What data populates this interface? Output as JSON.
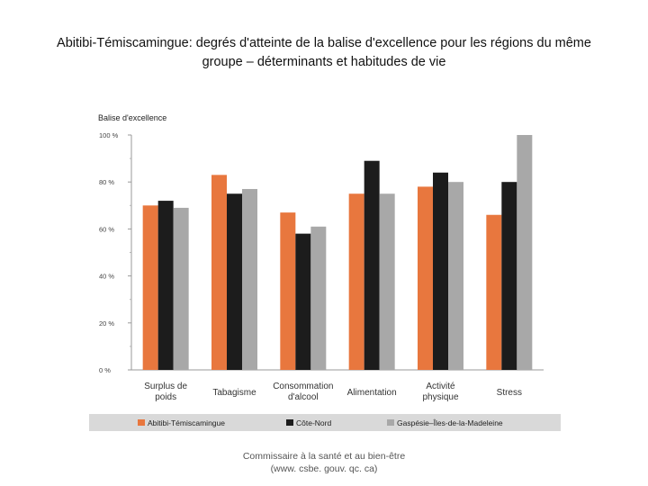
{
  "slide": {
    "title_line1": "Abitibi-Témiscamingue: degrés d'atteinte de la balise d'excellence pour les régions du même",
    "title_line2": "groupe – déterminants et habitudes de vie",
    "footer_line1": "Commissaire à la santé et au bien-être",
    "footer_line2": "(www. csbe. gouv. qc. ca)"
  },
  "chart_data": {
    "type": "bar",
    "ylabel": "Balise d'excellence",
    "yticks": [
      "0 %",
      "20 %",
      "40 %",
      "60 %",
      "80 %",
      "100 %"
    ],
    "ylim": [
      0,
      100
    ],
    "categories": [
      [
        "Surplus de",
        "poids"
      ],
      [
        "Tabagisme"
      ],
      [
        "Consommation",
        "d'alcool"
      ],
      [
        "Alimentation"
      ],
      [
        "Activité",
        "physique"
      ],
      [
        "Stress"
      ]
    ],
    "series": [
      {
        "name": "Abitibi-Témiscamingue",
        "color": "#e8773e",
        "values": [
          70,
          83,
          67,
          75,
          78,
          66
        ]
      },
      {
        "name": "Côte-Nord",
        "color": "#1c1c1c",
        "values": [
          72,
          75,
          58,
          89,
          84,
          80
        ]
      },
      {
        "name": "Gaspésie–Îles-de-la-Madeleine",
        "color": "#a8a8a8",
        "values": [
          69,
          77,
          61,
          75,
          80,
          100
        ]
      }
    ],
    "grid": false,
    "legend_position": "bottom"
  }
}
